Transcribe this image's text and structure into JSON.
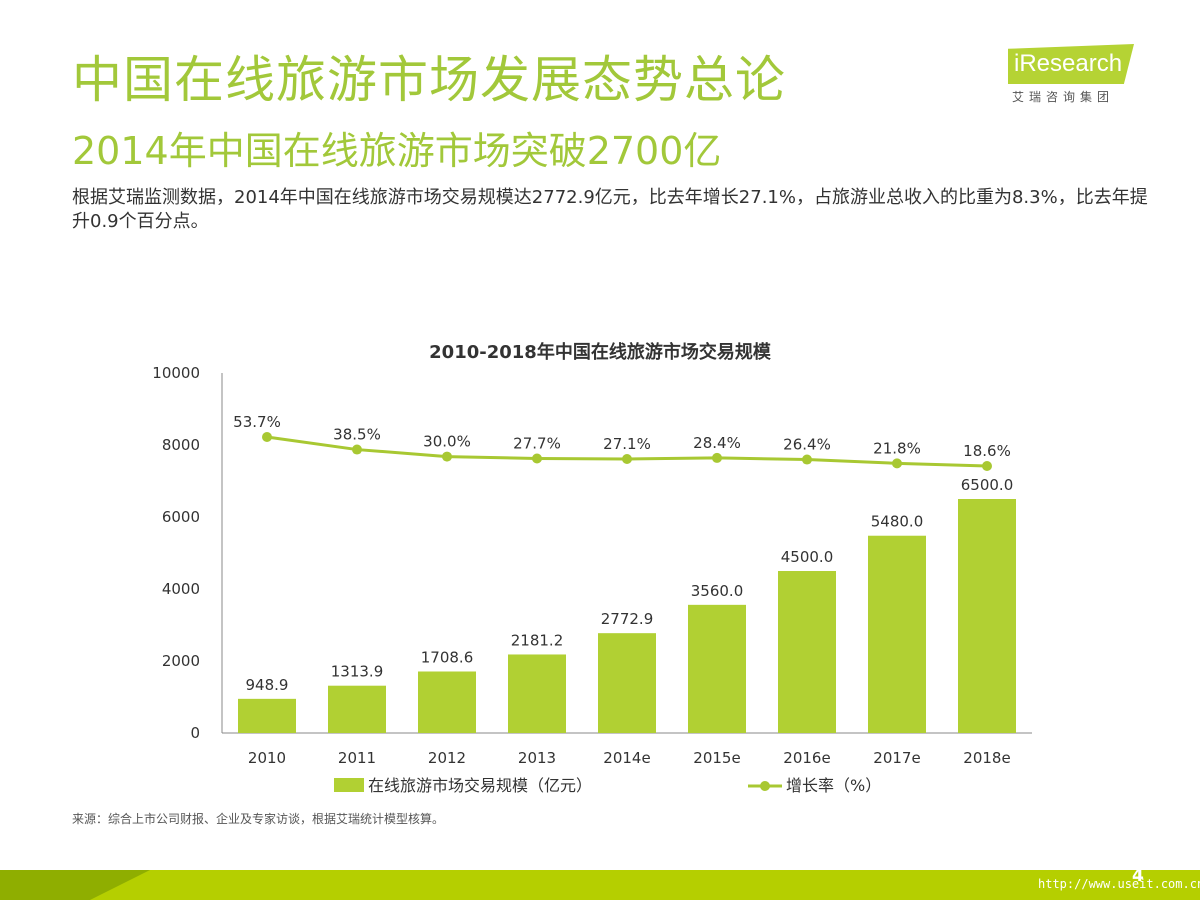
{
  "header": {
    "title": "中国在线旅游市场发展态势总论",
    "subtitle": "2014年中国在线旅游市场突破2700亿",
    "description": "根据艾瑞监测数据，2014年中国在线旅游市场交易规模达2772.9亿元，比去年增长27.1%，占旅游业总收入的比重为8.3%，比去年提升0.9个百分点。"
  },
  "logo": {
    "wordmark": "iResearch",
    "tagline": "艾瑞咨询集团"
  },
  "chart_data": {
    "type": "bar",
    "title": "2010-2018年中国在线旅游市场交易规模",
    "categories": [
      "2010",
      "2011",
      "2012",
      "2013",
      "2014e",
      "2015e",
      "2016e",
      "2017e",
      "2018e"
    ],
    "series": [
      {
        "name": "在线旅游市场交易规模（亿元）",
        "type": "bar",
        "values": [
          948.9,
          1313.9,
          1708.6,
          2181.2,
          2772.9,
          3560.0,
          4500.0,
          5480.0,
          6500.0
        ],
        "labels": [
          "948.9",
          "1313.9",
          "1708.6",
          "2181.2",
          "2772.9",
          "3560.0",
          "4500.0",
          "5480.0",
          "6500.0"
        ]
      },
      {
        "name": "增长率（%）",
        "type": "line",
        "values": [
          53.7,
          38.5,
          30.0,
          27.7,
          27.1,
          28.4,
          26.4,
          21.8,
          18.6
        ],
        "labels": [
          "53.7%",
          "38.5%",
          "30.0%",
          "27.7%",
          "27.1%",
          "28.4%",
          "26.4%",
          "21.8%",
          "18.6%"
        ]
      }
    ],
    "ylim": [
      0,
      10000
    ],
    "yticks": [
      "0",
      "2000",
      "4000",
      "6000",
      "8000",
      "10000"
    ],
    "legend_position": "bottom",
    "colors": {
      "bar": "#b1d033",
      "line": "#a8c832",
      "text": "#333333",
      "axis": "#888888"
    }
  },
  "source": "来源：综合上市公司财报、企业及专家访谈，根据艾瑞统计模型核算。",
  "footer": {
    "page_number": "4",
    "watermark": "http://www.useit.com.cn"
  }
}
